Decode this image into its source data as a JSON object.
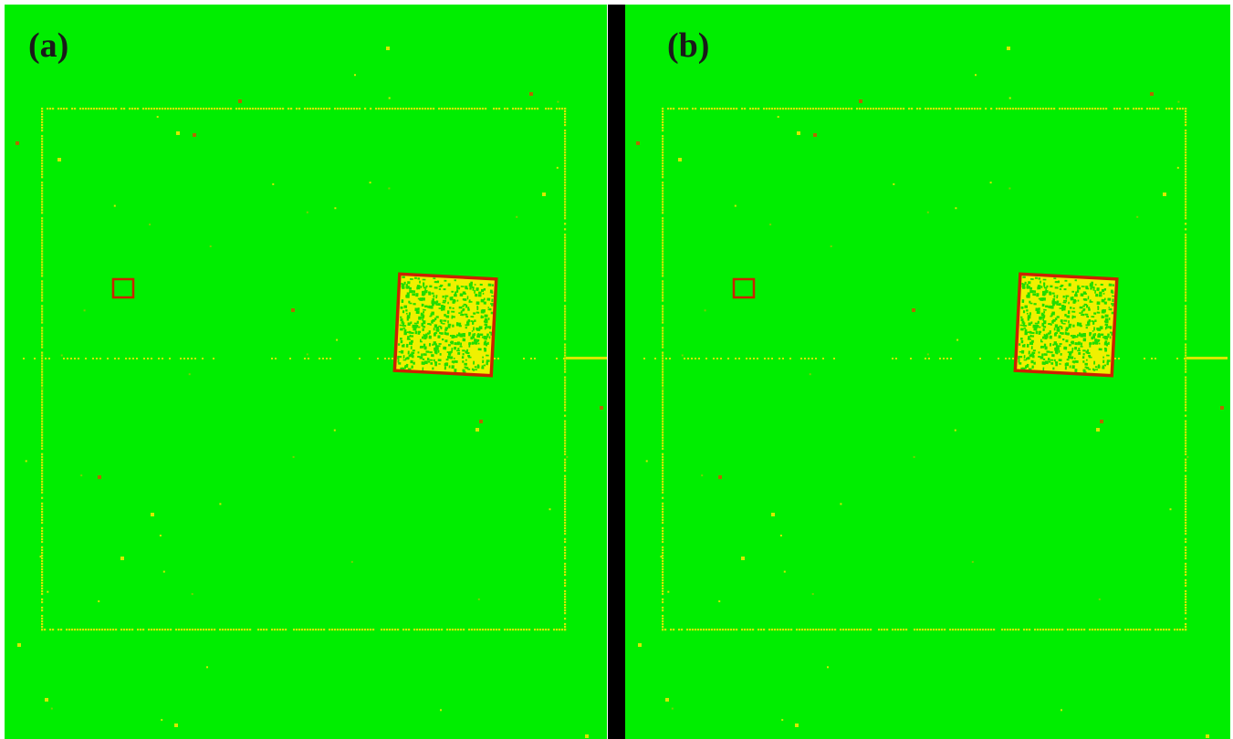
{
  "panels": [
    {
      "id": "a",
      "label": "(a)"
    },
    {
      "id": "b",
      "label": "(b)"
    }
  ],
  "colors": {
    "background": "#00ee00",
    "frame_dots": "#d8e800",
    "roi_box": "#cc2200",
    "noise_yellow": "#f0f000",
    "speck": "#b06a00",
    "divider": "#000000"
  }
}
